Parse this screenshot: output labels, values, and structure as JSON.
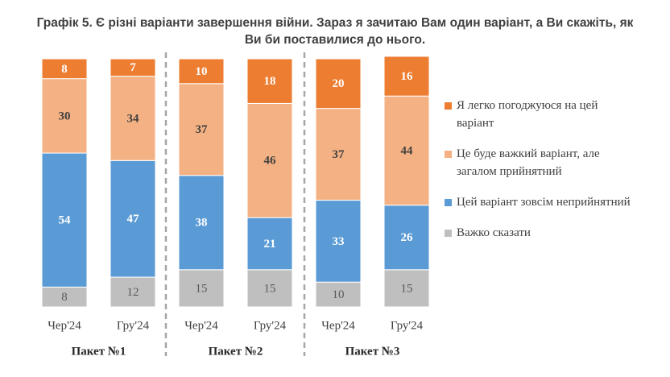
{
  "chart_data": {
    "type": "stacked-bar",
    "title": "Графік 5. Є різні варіанти завершення війни. Зараз я зачитаю Вам один варіант, а Ви скажіть, як Ви би поставилися до нього.",
    "categories": [
      "Чер'24",
      "Гру'24",
      "Чер'24",
      "Гру'24",
      "Чер'24",
      "Гру'24"
    ],
    "groups": [
      "Пакет №1",
      "Пакет №2",
      "Пакет №3"
    ],
    "series": [
      {
        "name": "Важко сказати",
        "color": "#bfbfbf",
        "values": [
          8,
          12,
          15,
          15,
          10,
          15
        ]
      },
      {
        "name": "Цей варіант зовсім неприйнятний",
        "color": "#5b9bd5",
        "values": [
          54,
          47,
          38,
          21,
          33,
          26
        ]
      },
      {
        "name": "Це буде важкий варіант, але загалом прийнятний",
        "color": "#f4b183",
        "values": [
          30,
          34,
          37,
          46,
          37,
          44
        ]
      },
      {
        "name": "Я легко погоджуюся на цей варіант",
        "color": "#ed7d31",
        "values": [
          8,
          7,
          10,
          18,
          20,
          16
        ]
      }
    ]
  }
}
